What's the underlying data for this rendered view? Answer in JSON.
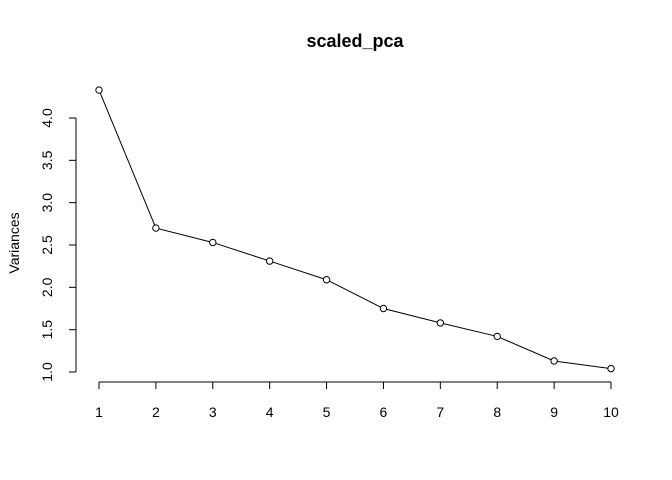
{
  "chart_data": {
    "type": "line",
    "title": "scaled_pca",
    "xlabel": "",
    "ylabel": "Variances",
    "x": [
      1,
      2,
      3,
      4,
      5,
      6,
      7,
      8,
      9,
      10
    ],
    "values": [
      4.33,
      2.7,
      2.53,
      2.31,
      2.09,
      1.75,
      1.58,
      1.42,
      1.13,
      1.04
    ],
    "x_ticks": [
      "1",
      "2",
      "3",
      "4",
      "5",
      "6",
      "7",
      "8",
      "9",
      "10"
    ],
    "y_ticks": [
      "1.0",
      "1.5",
      "2.0",
      "2.5",
      "3.0",
      "3.5",
      "4.0"
    ],
    "ylim": [
      1.0,
      4.0
    ],
    "grid": false,
    "legend": "none",
    "marker": "open-circle",
    "line_color": "#000000"
  }
}
